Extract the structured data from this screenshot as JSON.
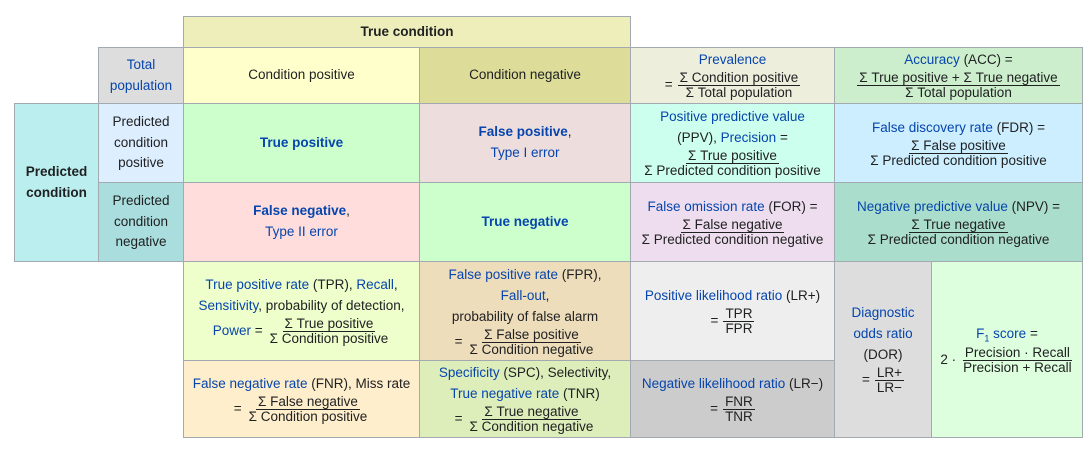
{
  "header": {
    "true_condition": "True condition"
  },
  "total_population": {
    "line1": "Total",
    "line2": "population"
  },
  "condition_positive": "Condition positive",
  "condition_negative": "Condition negative",
  "predicted_condition": {
    "line1": "Predicted",
    "line2": "condition"
  },
  "predicted_positive": {
    "line1": "Predicted",
    "line2": "condition",
    "line3": "positive"
  },
  "predicted_negative": {
    "line1": "Predicted",
    "line2": "condition",
    "line3": "negative"
  },
  "prevalence": {
    "label": "Prevalence",
    "eq": "=",
    "num": "Σ Condition positive",
    "den": "Σ Total population"
  },
  "accuracy": {
    "label": "Accuracy",
    "abbr": " (ACC) =",
    "num": "Σ True positive + Σ True negative",
    "den": "Σ Total population"
  },
  "true_positive": "True positive",
  "false_positive": {
    "label": "False positive",
    "comma": ",",
    "sub": "Type I error"
  },
  "false_negative": {
    "label": "False negative",
    "comma": ",",
    "sub": "Type II error"
  },
  "true_negative": "True negative",
  "ppv": {
    "label": "Positive predictive value",
    "abbr": "(PPV), ",
    "precision": "Precision",
    "eq": " =",
    "num": "Σ True positive",
    "den": "Σ Predicted condition positive"
  },
  "fdr": {
    "label": "False discovery rate",
    "abbr": " (FDR) =",
    "num": "Σ False positive",
    "den": "Σ Predicted condition positive"
  },
  "for": {
    "label": "False omission rate",
    "abbr": " (FOR) =",
    "num": "Σ False negative",
    "den": "Σ Predicted condition negative"
  },
  "npv": {
    "label": "Negative predictive value",
    "abbr": " (NPV) =",
    "num": "Σ True negative",
    "den": "Σ Predicted condition negative"
  },
  "tpr": {
    "label": "True positive rate",
    "abbr": " (TPR), ",
    "recall": "Recall",
    "comma": ",",
    "sensitivity": "Sensitivity",
    "rest": ", probability of detection,",
    "power": "Power",
    "eq": " =",
    "num": "Σ True positive",
    "den": "Σ Condition positive"
  },
  "fpr": {
    "label": "False positive rate",
    "abbr": " (FPR),",
    "fallout": "Fall-out",
    "comma": ",",
    "rest": "probability of false alarm",
    "eq": "=",
    "num": "Σ False positive",
    "den": "Σ Condition negative"
  },
  "fnr": {
    "label": "False negative rate",
    "abbr": " (FNR), Miss rate",
    "eq": "=",
    "num": "Σ False negative",
    "den": "Σ Condition positive"
  },
  "tnr": {
    "label": "Specificity",
    "abbr": " (SPC), Selectivity,",
    "tnr_label": "True negative rate",
    "tnr_abbr": " (TNR)",
    "eq": "=",
    "num": "Σ True negative",
    "den": "Σ Condition negative"
  },
  "lrp": {
    "label": "Positive likelihood ratio",
    "abbr": " (LR+)",
    "eq": "=",
    "num": "TPR",
    "den": "FPR"
  },
  "lrn": {
    "label": "Negative likelihood ratio",
    "abbr": " (LR−)",
    "eq": "=",
    "num": "FNR",
    "den": "TNR"
  },
  "dor": {
    "line1": "Diagnostic",
    "line2": "odds ratio",
    "abbr": "(DOR)",
    "eq": "=",
    "num": "LR+",
    "den": "LR−"
  },
  "f1": {
    "label": "F",
    "subscript": "1",
    "label2": " score",
    "eq": " =",
    "coef": "2 ·",
    "num": "Precision · Recall",
    "den": "Precision + Recall"
  },
  "colors": {
    "header_yellow": "#eeeebb",
    "total_gray": "#dddddd",
    "pos_yellow": "#ffffcc",
    "neg_olive": "#dddd99",
    "pred_cyan": "#bbeeee",
    "pred_blue_light": "#ddeeff",
    "pred_teal": "#aadddd",
    "tp_green": "#ccffcc",
    "fp_pink": "#eedddd",
    "fn_pink": "#ffdddd",
    "prev_beige": "#eeeedd",
    "acc_green": "#cceecc",
    "ppv_cyan": "#ccffee",
    "fdr_blue": "#cceeff",
    "for_lilac": "#eeddee",
    "npv_teal": "#aaddcc",
    "tpr_yellow": "#eeffcc",
    "fpr_tan": "#eeddbb",
    "fnr_peach": "#ffeecc",
    "tnr_lime": "#ddeebb",
    "lrp_gray": "#eeeeee",
    "lrn_gray": "#cccccc",
    "dor_gray": "#dddddd",
    "f1_green": "#ddffdd"
  }
}
